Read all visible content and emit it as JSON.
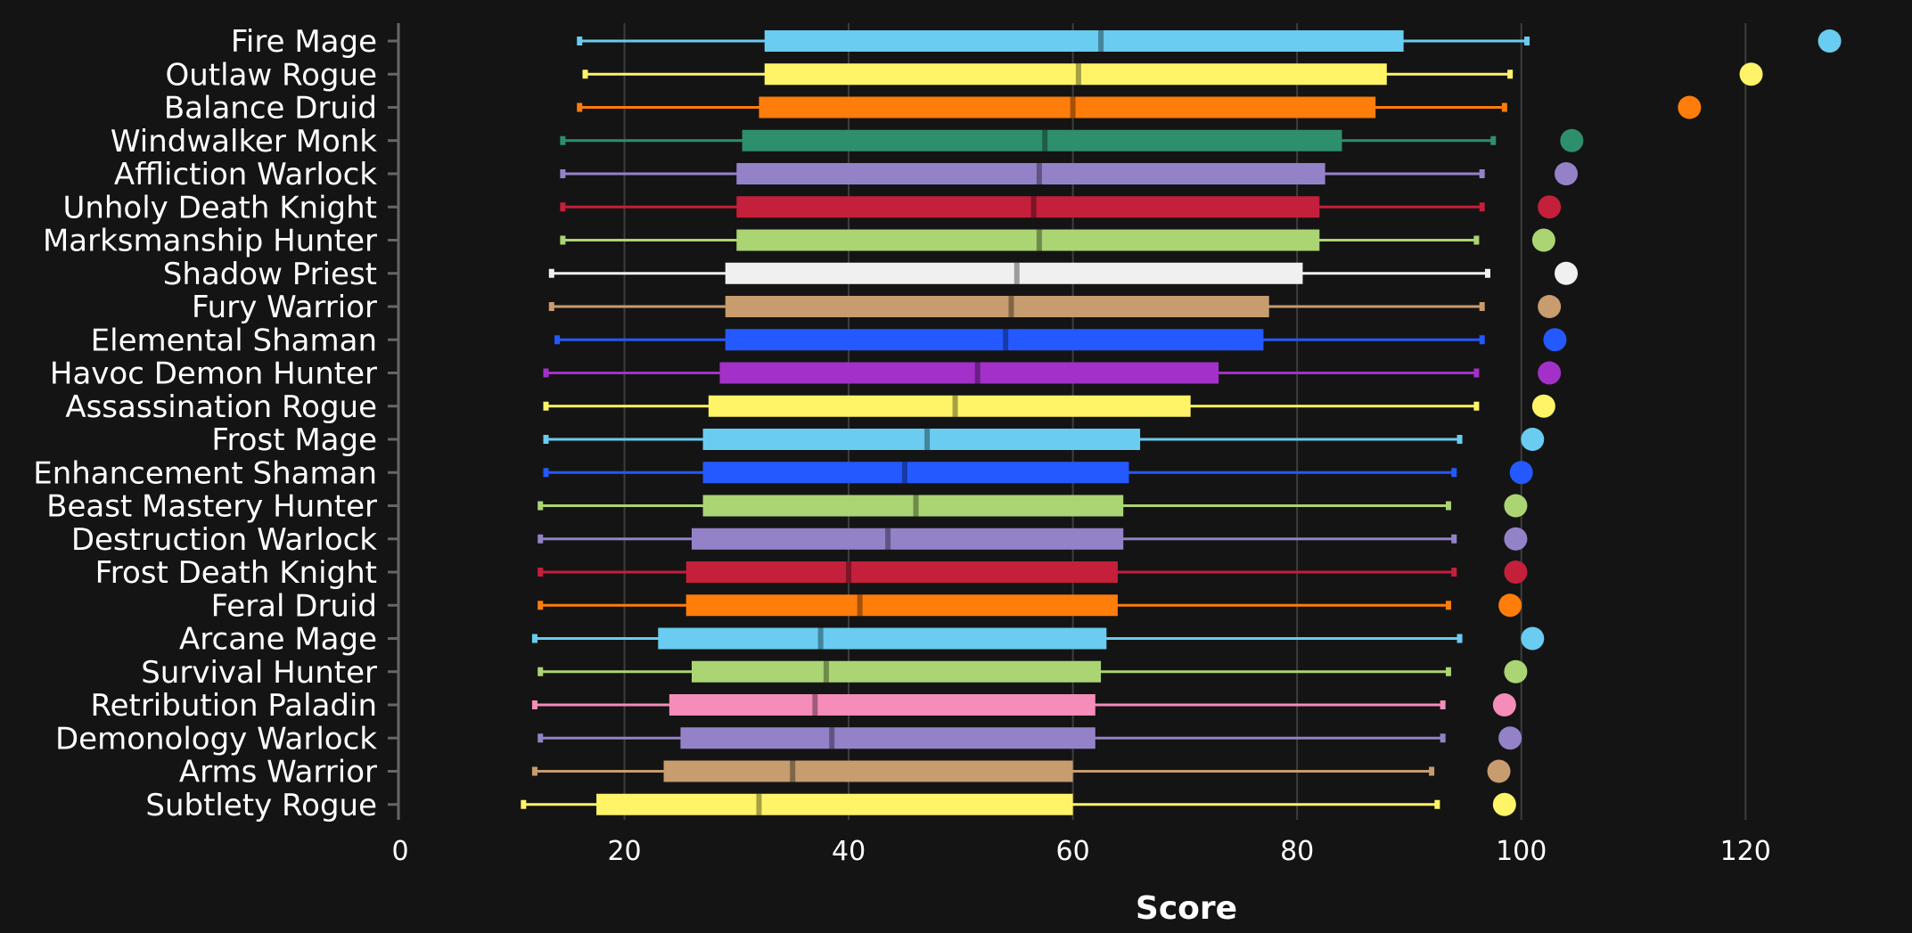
{
  "chart_data": {
    "type": "box",
    "xlabel": "Score",
    "ylabel": "",
    "xlim": [
      0,
      132
    ],
    "xticks": [
      0,
      20,
      40,
      60,
      80,
      100,
      120
    ],
    "grid": true,
    "series": [
      {
        "category": "Fire Mage",
        "color": "#69ccf0",
        "min": 16,
        "q1": 32.5,
        "median": 62.5,
        "q3": 89.5,
        "max": 100.5,
        "top": 127.5
      },
      {
        "category": "Outlaw Rogue",
        "color": "#fff468",
        "min": 16.5,
        "q1": 32.5,
        "median": 60.5,
        "q3": 88,
        "max": 99,
        "top": 120.5
      },
      {
        "category": "Balance Druid",
        "color": "#ff7d0a",
        "min": 16,
        "q1": 32,
        "median": 60,
        "q3": 87,
        "max": 98.5,
        "top": 115
      },
      {
        "category": "Windwalker Monk",
        "color": "#2e8f6c",
        "min": 14.5,
        "q1": 30.5,
        "median": 57.5,
        "q3": 84,
        "max": 97.5,
        "top": 104.5
      },
      {
        "category": "Affliction Warlock",
        "color": "#9482c9",
        "min": 14.5,
        "q1": 30,
        "median": 57,
        "q3": 82.5,
        "max": 96.5,
        "top": 104
      },
      {
        "category": "Unholy Death Knight",
        "color": "#c41f3b",
        "min": 14.5,
        "q1": 30,
        "median": 56.5,
        "q3": 82,
        "max": 96.5,
        "top": 102.5
      },
      {
        "category": "Marksmanship Hunter",
        "color": "#abd473",
        "min": 14.5,
        "q1": 30,
        "median": 57,
        "q3": 82,
        "max": 96,
        "top": 102
      },
      {
        "category": "Shadow Priest",
        "color": "#f0f0f0",
        "min": 13.5,
        "q1": 29,
        "median": 55,
        "q3": 80.5,
        "max": 97,
        "top": 104
      },
      {
        "category": "Fury Warrior",
        "color": "#c79c6e",
        "min": 13.5,
        "q1": 29,
        "median": 54.5,
        "q3": 77.5,
        "max": 96.5,
        "top": 102.5
      },
      {
        "category": "Elemental Shaman",
        "color": "#2459ff",
        "min": 14,
        "q1": 29,
        "median": 54,
        "q3": 77,
        "max": 96.5,
        "top": 103
      },
      {
        "category": "Havoc Demon Hunter",
        "color": "#a330c9",
        "min": 13,
        "q1": 28.5,
        "median": 51.5,
        "q3": 73,
        "max": 96,
        "top": 102.5
      },
      {
        "category": "Assassination Rogue",
        "color": "#fff468",
        "min": 13,
        "q1": 27.5,
        "median": 49.5,
        "q3": 70.5,
        "max": 96,
        "top": 102
      },
      {
        "category": "Frost Mage",
        "color": "#69ccf0",
        "min": 13,
        "q1": 27,
        "median": 47,
        "q3": 66,
        "max": 94.5,
        "top": 101
      },
      {
        "category": "Enhancement Shaman",
        "color": "#2459ff",
        "min": 13,
        "q1": 27,
        "median": 45,
        "q3": 65,
        "max": 94,
        "top": 100
      },
      {
        "category": "Beast Mastery Hunter",
        "color": "#abd473",
        "min": 12.5,
        "q1": 27,
        "median": 46,
        "q3": 64.5,
        "max": 93.5,
        "top": 99.5
      },
      {
        "category": "Destruction Warlock",
        "color": "#9482c9",
        "min": 12.5,
        "q1": 26,
        "median": 43.5,
        "q3": 64.5,
        "max": 94,
        "top": 99.5
      },
      {
        "category": "Frost Death Knight",
        "color": "#c41f3b",
        "min": 12.5,
        "q1": 25.5,
        "median": 40,
        "q3": 64,
        "max": 94,
        "top": 99.5
      },
      {
        "category": "Feral Druid",
        "color": "#ff7d0a",
        "min": 12.5,
        "q1": 25.5,
        "median": 41,
        "q3": 64,
        "max": 93.5,
        "top": 99
      },
      {
        "category": "Arcane Mage",
        "color": "#69ccf0",
        "min": 12,
        "q1": 23,
        "median": 37.5,
        "q3": 63,
        "max": 94.5,
        "top": 101
      },
      {
        "category": "Survival Hunter",
        "color": "#abd473",
        "min": 12.5,
        "q1": 26,
        "median": 38,
        "q3": 62.5,
        "max": 93.5,
        "top": 99.5
      },
      {
        "category": "Retribution Paladin",
        "color": "#f58cba",
        "min": 12,
        "q1": 24,
        "median": 37,
        "q3": 62,
        "max": 93,
        "top": 98.5
      },
      {
        "category": "Demonology Warlock",
        "color": "#9482c9",
        "min": 12.5,
        "q1": 25,
        "median": 38.5,
        "q3": 62,
        "max": 93,
        "top": 99
      },
      {
        "category": "Arms Warrior",
        "color": "#c79c6e",
        "min": 12,
        "q1": 23.5,
        "median": 35,
        "q3": 60,
        "max": 92,
        "top": 98
      },
      {
        "category": "Subtlety Rogue",
        "color": "#fff468",
        "min": 11,
        "q1": 17.5,
        "median": 32,
        "q3": 60,
        "max": 92.5,
        "top": 98.5
      }
    ]
  }
}
